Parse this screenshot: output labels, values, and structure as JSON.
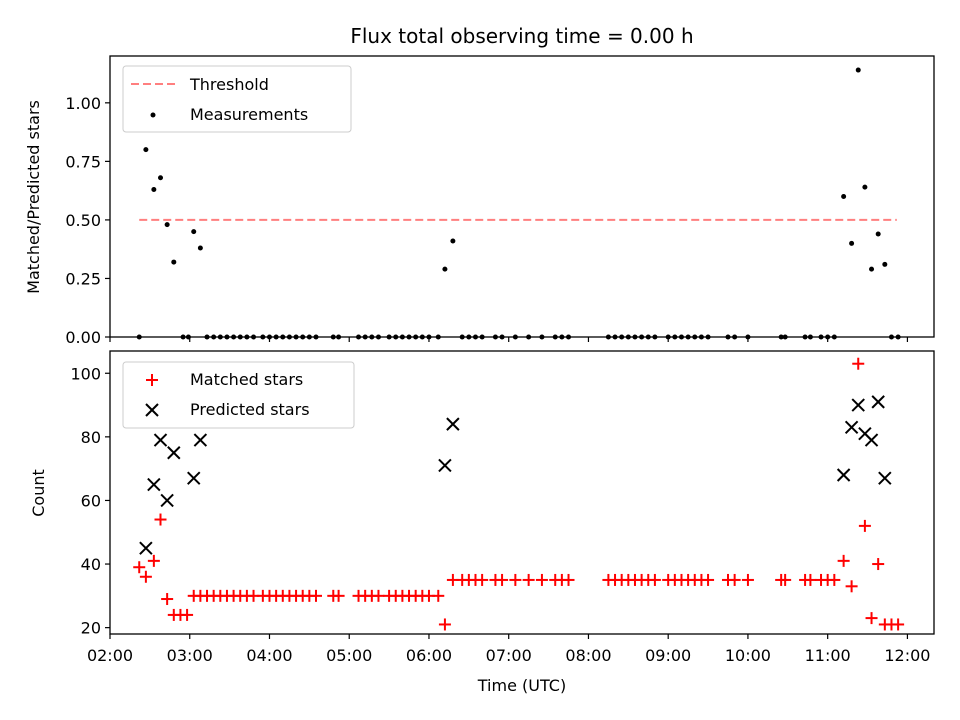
{
  "chart_data": [
    {
      "type": "scatter",
      "title": "Flux total observing time = 0.00 h",
      "xlabel": "",
      "ylabel": "Matched/Predicted stars",
      "xlim": [
        "02:00",
        "12:20"
      ],
      "ylim": [
        0,
        1.2
      ],
      "yticks": [
        "0.00",
        "0.25",
        "0.50",
        "0.75",
        "1.00"
      ],
      "threshold": {
        "name": "Threshold",
        "value": 0.5,
        "x_from": "02:22",
        "x_to": "11:52",
        "color": "#ff7f7f",
        "style": "dashed"
      },
      "series": [
        {
          "name": "Measurements",
          "color": "#000000",
          "marker": "dot",
          "points": [
            [
              "02:22",
              0.0
            ],
            [
              "02:27",
              0.8
            ],
            [
              "02:33",
              0.63
            ],
            [
              "02:38",
              0.68
            ],
            [
              "02:43",
              0.48
            ],
            [
              "02:48",
              0.32
            ],
            [
              "02:55",
              0.0
            ],
            [
              "02:59",
              0.0
            ],
            [
              "03:03",
              0.45
            ],
            [
              "03:08",
              0.38
            ],
            [
              "03:13",
              0.0
            ],
            [
              "03:18",
              0.0
            ],
            [
              "03:23",
              0.0
            ],
            [
              "03:28",
              0.0
            ],
            [
              "03:33",
              0.0
            ],
            [
              "03:38",
              0.0
            ],
            [
              "03:43",
              0.0
            ],
            [
              "03:48",
              0.0
            ],
            [
              "03:55",
              0.0
            ],
            [
              "04:00",
              0.0
            ],
            [
              "04:05",
              0.0
            ],
            [
              "04:10",
              0.0
            ],
            [
              "04:15",
              0.0
            ],
            [
              "04:20",
              0.0
            ],
            [
              "04:25",
              0.0
            ],
            [
              "04:30",
              0.0
            ],
            [
              "04:35",
              0.0
            ],
            [
              "04:48",
              0.0
            ],
            [
              "04:52",
              0.0
            ],
            [
              "05:07",
              0.0
            ],
            [
              "05:12",
              0.0
            ],
            [
              "05:17",
              0.0
            ],
            [
              "05:22",
              0.0
            ],
            [
              "05:30",
              0.0
            ],
            [
              "05:35",
              0.0
            ],
            [
              "05:40",
              0.0
            ],
            [
              "05:45",
              0.0
            ],
            [
              "05:50",
              0.0
            ],
            [
              "05:55",
              0.0
            ],
            [
              "06:00",
              0.0
            ],
            [
              "06:07",
              0.0
            ],
            [
              "06:12",
              0.29
            ],
            [
              "06:18",
              0.41
            ],
            [
              "06:25",
              0.0
            ],
            [
              "06:30",
              0.0
            ],
            [
              "06:35",
              0.0
            ],
            [
              "06:40",
              0.0
            ],
            [
              "06:50",
              0.0
            ],
            [
              "06:55",
              0.0
            ],
            [
              "07:05",
              0.0
            ],
            [
              "07:15",
              0.0
            ],
            [
              "07:25",
              0.0
            ],
            [
              "07:35",
              0.0
            ],
            [
              "07:40",
              0.0
            ],
            [
              "07:45",
              0.0
            ],
            [
              "08:15",
              0.0
            ],
            [
              "08:20",
              0.0
            ],
            [
              "08:25",
              0.0
            ],
            [
              "08:30",
              0.0
            ],
            [
              "08:35",
              0.0
            ],
            [
              "08:40",
              0.0
            ],
            [
              "08:45",
              0.0
            ],
            [
              "08:50",
              0.0
            ],
            [
              "09:00",
              0.0
            ],
            [
              "09:05",
              0.0
            ],
            [
              "09:10",
              0.0
            ],
            [
              "09:15",
              0.0
            ],
            [
              "09:20",
              0.0
            ],
            [
              "09:25",
              0.0
            ],
            [
              "09:30",
              0.0
            ],
            [
              "09:45",
              0.0
            ],
            [
              "09:50",
              0.0
            ],
            [
              "10:00",
              0.0
            ],
            [
              "10:25",
              0.0
            ],
            [
              "10:28",
              0.0
            ],
            [
              "10:43",
              0.0
            ],
            [
              "10:47",
              0.0
            ],
            [
              "10:55",
              0.0
            ],
            [
              "11:00",
              0.0
            ],
            [
              "11:05",
              0.0
            ],
            [
              "11:12",
              0.6
            ],
            [
              "11:18",
              0.4
            ],
            [
              "11:23",
              1.14
            ],
            [
              "11:28",
              0.64
            ],
            [
              "11:33",
              0.29
            ],
            [
              "11:38",
              0.44
            ],
            [
              "11:43",
              0.31
            ],
            [
              "11:48",
              0.0
            ],
            [
              "11:53",
              0.0
            ]
          ]
        }
      ]
    },
    {
      "type": "scatter",
      "title": "",
      "xlabel": "Time (UTC)",
      "ylabel": "Count",
      "xlim": [
        "02:00",
        "12:20"
      ],
      "ylim": [
        18,
        107
      ],
      "yticks": [
        "20",
        "40",
        "60",
        "80",
        "100"
      ],
      "xticks": [
        "02:00",
        "03:00",
        "04:00",
        "05:00",
        "06:00",
        "07:00",
        "08:00",
        "09:00",
        "10:00",
        "11:00",
        "12:00"
      ],
      "series": [
        {
          "name": "Matched stars",
          "color": "#ff0000",
          "marker": "plus",
          "points": [
            [
              "02:22",
              39
            ],
            [
              "02:27",
              36
            ],
            [
              "02:33",
              41
            ],
            [
              "02:38",
              54
            ],
            [
              "02:43",
              29
            ],
            [
              "02:48",
              24
            ],
            [
              "02:53",
              24
            ],
            [
              "02:58",
              24
            ],
            [
              "03:03",
              30
            ],
            [
              "03:08",
              30
            ],
            [
              "03:13",
              30
            ],
            [
              "03:18",
              30
            ],
            [
              "03:23",
              30
            ],
            [
              "03:28",
              30
            ],
            [
              "03:33",
              30
            ],
            [
              "03:38",
              30
            ],
            [
              "03:43",
              30
            ],
            [
              "03:48",
              30
            ],
            [
              "03:55",
              30
            ],
            [
              "04:00",
              30
            ],
            [
              "04:05",
              30
            ],
            [
              "04:10",
              30
            ],
            [
              "04:15",
              30
            ],
            [
              "04:20",
              30
            ],
            [
              "04:25",
              30
            ],
            [
              "04:30",
              30
            ],
            [
              "04:35",
              30
            ],
            [
              "04:48",
              30
            ],
            [
              "04:52",
              30
            ],
            [
              "05:07",
              30
            ],
            [
              "05:12",
              30
            ],
            [
              "05:17",
              30
            ],
            [
              "05:22",
              30
            ],
            [
              "05:30",
              30
            ],
            [
              "05:35",
              30
            ],
            [
              "05:40",
              30
            ],
            [
              "05:45",
              30
            ],
            [
              "05:50",
              30
            ],
            [
              "05:55",
              30
            ],
            [
              "06:00",
              30
            ],
            [
              "06:07",
              30
            ],
            [
              "06:12",
              21
            ],
            [
              "06:18",
              35
            ],
            [
              "06:25",
              35
            ],
            [
              "06:30",
              35
            ],
            [
              "06:35",
              35
            ],
            [
              "06:40",
              35
            ],
            [
              "06:50",
              35
            ],
            [
              "06:55",
              35
            ],
            [
              "07:05",
              35
            ],
            [
              "07:15",
              35
            ],
            [
              "07:25",
              35
            ],
            [
              "07:35",
              35
            ],
            [
              "07:40",
              35
            ],
            [
              "07:45",
              35
            ],
            [
              "08:15",
              35
            ],
            [
              "08:20",
              35
            ],
            [
              "08:25",
              35
            ],
            [
              "08:30",
              35
            ],
            [
              "08:35",
              35
            ],
            [
              "08:40",
              35
            ],
            [
              "08:45",
              35
            ],
            [
              "08:50",
              35
            ],
            [
              "09:00",
              35
            ],
            [
              "09:05",
              35
            ],
            [
              "09:10",
              35
            ],
            [
              "09:15",
              35
            ],
            [
              "09:20",
              35
            ],
            [
              "09:25",
              35
            ],
            [
              "09:30",
              35
            ],
            [
              "09:45",
              35
            ],
            [
              "09:50",
              35
            ],
            [
              "10:00",
              35
            ],
            [
              "10:25",
              35
            ],
            [
              "10:28",
              35
            ],
            [
              "10:43",
              35
            ],
            [
              "10:47",
              35
            ],
            [
              "10:55",
              35
            ],
            [
              "11:00",
              35
            ],
            [
              "11:05",
              35
            ],
            [
              "11:12",
              41
            ],
            [
              "11:18",
              33
            ],
            [
              "11:23",
              103
            ],
            [
              "11:28",
              52
            ],
            [
              "11:33",
              23
            ],
            [
              "11:38",
              40
            ],
            [
              "11:43",
              21
            ],
            [
              "11:48",
              21
            ],
            [
              "11:53",
              21
            ]
          ]
        },
        {
          "name": "Predicted stars",
          "color": "#000000",
          "marker": "x",
          "points": [
            [
              "02:27",
              45
            ],
            [
              "02:33",
              65
            ],
            [
              "02:38",
              79
            ],
            [
              "02:43",
              60
            ],
            [
              "02:48",
              75
            ],
            [
              "03:03",
              67
            ],
            [
              "03:08",
              79
            ],
            [
              "06:12",
              71
            ],
            [
              "06:18",
              84
            ],
            [
              "11:12",
              68
            ],
            [
              "11:18",
              83
            ],
            [
              "11:23",
              90
            ],
            [
              "11:28",
              81
            ],
            [
              "11:33",
              79
            ],
            [
              "11:38",
              91
            ],
            [
              "11:43",
              67
            ]
          ]
        }
      ]
    }
  ]
}
